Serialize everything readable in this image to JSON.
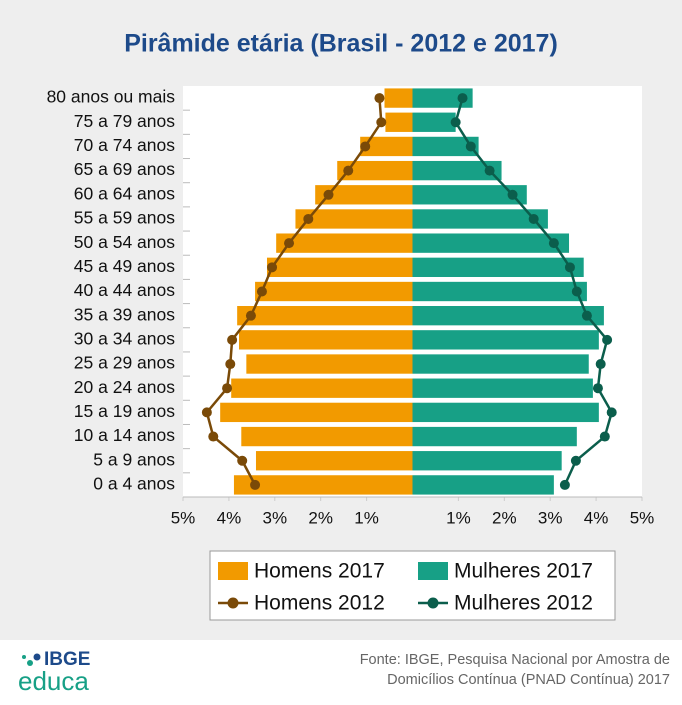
{
  "chart_data": {
    "type": "pyramid",
    "title": "Pirâmide etária (Brasil - 2012 e 2017)",
    "categories": [
      "0 a 4 anos",
      "5 a 9 anos",
      "10 a 14 anos",
      "15 a 19 anos",
      "20 a 24 anos",
      "25 a 29 anos",
      "30 a 34 anos",
      "35 a 39 anos",
      "40 a 44 anos",
      "45 a 49 anos",
      "50 a 54 anos",
      "55 a 59 anos",
      "60 a 64 anos",
      "65 a 69 anos",
      "70 a 74 anos",
      "75 a 79 anos",
      "80 anos ou mais"
    ],
    "series": [
      {
        "name": "Homens 2017",
        "kind": "bar",
        "color": "#f29a00",
        "values": [
          -3.89,
          -3.41,
          -3.73,
          -4.19,
          -3.95,
          -3.62,
          -3.78,
          -3.82,
          -3.43,
          -3.17,
          -2.97,
          -2.55,
          -2.12,
          -1.64,
          -1.14,
          -0.59,
          -0.61
        ]
      },
      {
        "name": "Mulheres 2017",
        "kind": "bar",
        "color": "#17a086",
        "values": [
          3.08,
          3.25,
          3.58,
          4.06,
          3.93,
          3.84,
          4.06,
          4.17,
          3.8,
          3.73,
          3.41,
          2.95,
          2.49,
          1.94,
          1.44,
          0.94,
          1.31
        ]
      },
      {
        "name": "Homens 2012",
        "kind": "line",
        "color": "#7a4a08",
        "values": [
          -3.43,
          -3.71,
          -4.34,
          -4.48,
          -4.04,
          -3.97,
          -3.93,
          -3.52,
          -3.28,
          -3.06,
          -2.69,
          -2.27,
          -1.83,
          -1.4,
          -1.03,
          -0.68,
          -0.72
        ]
      },
      {
        "name": "Mulheres 2012",
        "kind": "line",
        "color": "#0b5e4c",
        "values": [
          3.32,
          3.56,
          4.19,
          4.34,
          4.04,
          4.1,
          4.24,
          3.8,
          3.58,
          3.43,
          3.08,
          2.64,
          2.18,
          1.68,
          1.27,
          0.94,
          1.09
        ]
      }
    ],
    "xlim": [
      -5,
      5
    ],
    "xticks": [
      {
        "value": -5,
        "label": "5%"
      },
      {
        "value": -4,
        "label": "4%"
      },
      {
        "value": -3,
        "label": "3%"
      },
      {
        "value": -2,
        "label": "2%"
      },
      {
        "value": -1,
        "label": "1%"
      },
      {
        "value": 1,
        "label": "1%"
      },
      {
        "value": 2,
        "label": "2%"
      },
      {
        "value": 3,
        "label": "3%"
      },
      {
        "value": 4,
        "label": "4%"
      },
      {
        "value": 5,
        "label": "5%"
      }
    ],
    "grid": false,
    "legend": "bottom"
  },
  "footer": {
    "logo": [
      "IBGE",
      "educa"
    ],
    "source": [
      "Fonte: IBGE, Pesquisa Nacional por Amostra de",
      "Domicílios Contínua (PNAD Contínua) 2017"
    ]
  }
}
